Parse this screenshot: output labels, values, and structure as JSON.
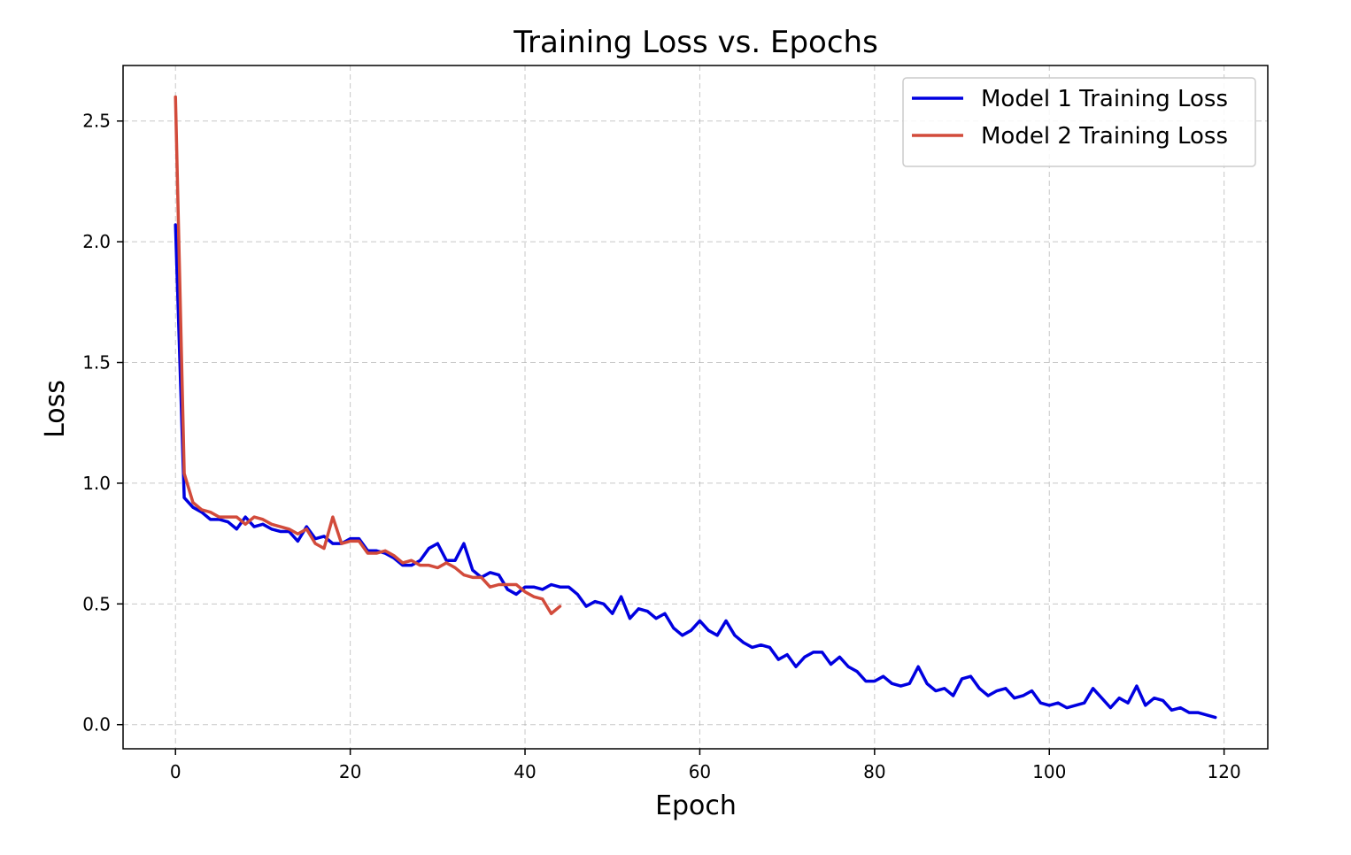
{
  "chart_data": {
    "type": "line",
    "title": "Training Loss vs. Epochs",
    "xlabel": "Epoch",
    "ylabel": "Loss",
    "xlim": [
      -6,
      125
    ],
    "ylim": [
      -0.1,
      2.73
    ],
    "xticks": [
      0,
      20,
      40,
      60,
      80,
      100,
      120
    ],
    "yticks": [
      0.0,
      0.5,
      1.0,
      1.5,
      2.0,
      2.5
    ],
    "xtick_labels": [
      "0",
      "20",
      "40",
      "60",
      "80",
      "100",
      "120"
    ],
    "ytick_labels": [
      "0.0",
      "0.5",
      "1.0",
      "1.5",
      "2.0",
      "2.5"
    ],
    "grid": true,
    "legend_position": "top-right",
    "series": [
      {
        "name": "Model 1 Training Loss",
        "color": "#0000e0",
        "values": [
          2.07,
          0.94,
          0.9,
          0.88,
          0.85,
          0.85,
          0.84,
          0.81,
          0.86,
          0.82,
          0.83,
          0.81,
          0.8,
          0.8,
          0.76,
          0.82,
          0.77,
          0.78,
          0.75,
          0.75,
          0.77,
          0.77,
          0.72,
          0.72,
          0.71,
          0.69,
          0.66,
          0.66,
          0.68,
          0.73,
          0.75,
          0.68,
          0.68,
          0.75,
          0.64,
          0.61,
          0.63,
          0.62,
          0.56,
          0.54,
          0.57,
          0.57,
          0.56,
          0.58,
          0.57,
          0.57,
          0.54,
          0.49,
          0.51,
          0.5,
          0.46,
          0.53,
          0.44,
          0.48,
          0.47,
          0.44,
          0.46,
          0.4,
          0.37,
          0.39,
          0.43,
          0.39,
          0.37,
          0.43,
          0.37,
          0.34,
          0.32,
          0.33,
          0.32,
          0.27,
          0.29,
          0.24,
          0.28,
          0.3,
          0.3,
          0.25,
          0.28,
          0.24,
          0.22,
          0.18,
          0.18,
          0.2,
          0.17,
          0.16,
          0.17,
          0.24,
          0.17,
          0.14,
          0.15,
          0.12,
          0.19,
          0.2,
          0.15,
          0.12,
          0.14,
          0.15,
          0.11,
          0.12,
          0.14,
          0.09,
          0.08,
          0.09,
          0.07,
          0.08,
          0.09,
          0.15,
          0.11,
          0.07,
          0.11,
          0.09,
          0.16,
          0.08,
          0.11,
          0.1,
          0.06,
          0.07,
          0.05,
          0.05,
          0.04,
          0.03
        ]
      },
      {
        "name": "Model 2 Training Loss",
        "color": "#d24b3b",
        "values": [
          2.6,
          1.04,
          0.92,
          0.89,
          0.88,
          0.86,
          0.86,
          0.86,
          0.83,
          0.86,
          0.85,
          0.83,
          0.82,
          0.81,
          0.79,
          0.81,
          0.75,
          0.73,
          0.86,
          0.75,
          0.76,
          0.76,
          0.71,
          0.71,
          0.72,
          0.7,
          0.67,
          0.68,
          0.66,
          0.66,
          0.65,
          0.67,
          0.65,
          0.62,
          0.61,
          0.61,
          0.57,
          0.58,
          0.58,
          0.58,
          0.55,
          0.53,
          0.52,
          0.46,
          0.49
        ]
      }
    ]
  }
}
